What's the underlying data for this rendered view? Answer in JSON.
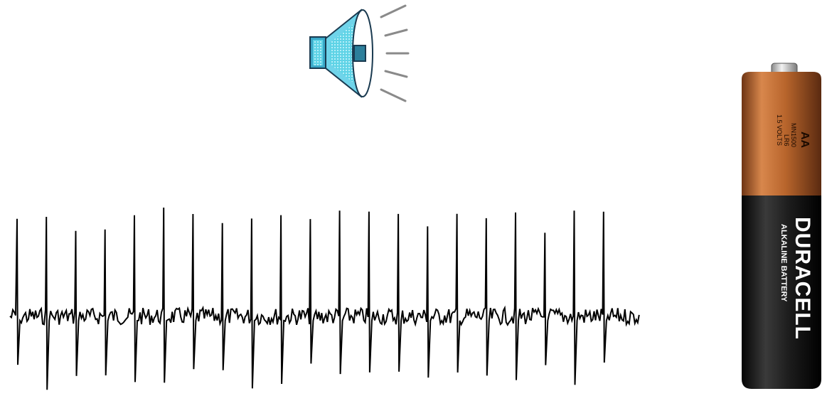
{
  "speaker": {
    "icon": "speaker-sound-icon"
  },
  "trace": {
    "icon": "spike-train-trace",
    "spikes": 21,
    "color": "#000000"
  },
  "battery": {
    "icon": "aa-battery-image",
    "size_label": "AA",
    "model_label": "MN1500",
    "code_label": "LR6",
    "voltage_label": "1.5 VOLTS",
    "brand": "DURACELL",
    "type_label": "ALKALINE BATTERY",
    "colors": {
      "copper": "#b8652c",
      "body": "#1c1c1c",
      "top": "#d8d8d8"
    }
  }
}
